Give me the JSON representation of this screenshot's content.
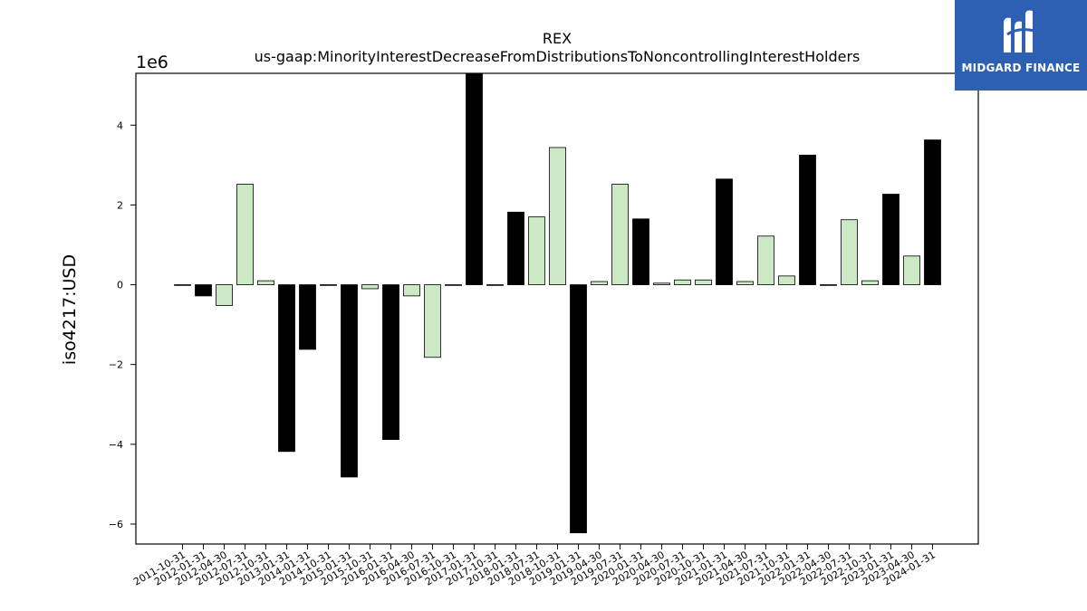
{
  "logo": {
    "text": "MIDGARD FINANCE",
    "icon": "midgard-m-logo-icon",
    "background": "#2d5fb3"
  },
  "chart_data": {
    "type": "bar",
    "title": "REX",
    "subtitle": "us-gaap:MinorityInterestDecreaseFromDistributionsToNoncontrollingInterestHolders",
    "xlabel": "",
    "ylabel": "iso4217:USD",
    "y_offset_label": "1e6",
    "ylim": [
      -6.5,
      5.3
    ],
    "yticks": [
      -6,
      -4,
      -2,
      0,
      2,
      4
    ],
    "ytick_labels": [
      "−6",
      "−4",
      "−2",
      "0",
      "2",
      "4"
    ],
    "grid": false,
    "colors": {
      "black": "#000000",
      "light_green": "#cce8c5",
      "edge": "#000000"
    },
    "categories": [
      "2011-10-31",
      "2012-01-31",
      "2012-04-30",
      "2012-07-31",
      "2012-10-31",
      "2013-01-31",
      "2014-01-31",
      "2014-10-31",
      "2015-01-31",
      "2015-10-31",
      "2016-01-31",
      "2016-04-30",
      "2016-07-31",
      "2016-10-31",
      "2017-01-31",
      "2017-10-31",
      "2018-01-31",
      "2018-07-31",
      "2018-10-31",
      "2019-01-31",
      "2019-04-30",
      "2019-07-31",
      "2020-01-31",
      "2020-04-30",
      "2020-07-31",
      "2020-10-31",
      "2021-01-31",
      "2021-04-30",
      "2021-07-31",
      "2021-10-31",
      "2022-01-31",
      "2022-04-30",
      "2022-07-31",
      "2022-10-31",
      "2023-01-31",
      "2023-04-30",
      "2024-01-31"
    ],
    "values": [
      0.0,
      -0.28,
      -0.52,
      2.52,
      0.1,
      -4.18,
      -1.62,
      0.0,
      -4.82,
      -0.1,
      -3.88,
      -0.28,
      -1.82,
      0.0,
      5.4,
      0.0,
      1.82,
      1.7,
      3.44,
      -6.22,
      0.08,
      2.52,
      1.65,
      0.04,
      0.12,
      0.12,
      2.65,
      0.08,
      1.22,
      0.22,
      3.25,
      0.0,
      1.63,
      0.1,
      2.27,
      0.72,
      3.63
    ],
    "bar_colors": [
      "black",
      "black",
      "light_green",
      "light_green",
      "light_green",
      "black",
      "black",
      "black",
      "black",
      "light_green",
      "black",
      "light_green",
      "light_green",
      "black",
      "black",
      "black",
      "black",
      "light_green",
      "light_green",
      "black",
      "light_green",
      "light_green",
      "black",
      "light_green",
      "light_green",
      "light_green",
      "black",
      "light_green",
      "light_green",
      "light_green",
      "black",
      "black",
      "light_green",
      "light_green",
      "black",
      "light_green",
      "black"
    ]
  }
}
